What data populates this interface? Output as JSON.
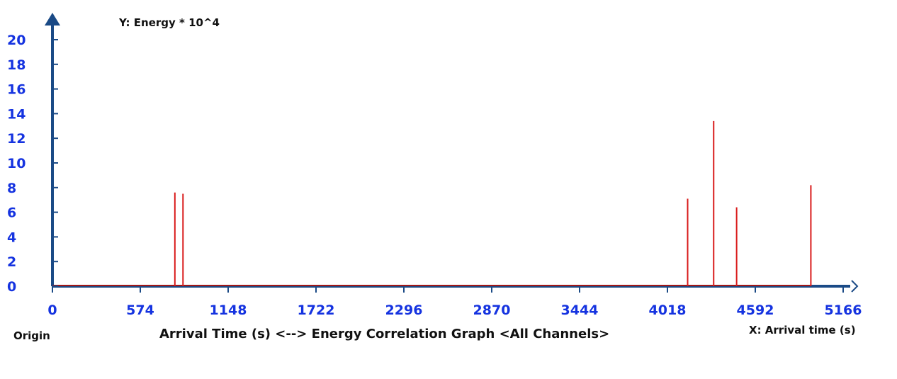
{
  "chart_data": {
    "type": "bar",
    "title": "Arrival Time (s) <--> Energy Correlation Graph <All Channels>",
    "ylabel": "Y: Energy * 10^4",
    "xlabel": "X: Arrival time (s)",
    "origin_label": "Origin",
    "xlim": [
      0,
      5166
    ],
    "ylim": [
      0,
      20
    ],
    "x_ticks": [
      0,
      574,
      1148,
      1722,
      2296,
      2870,
      3444,
      4018,
      4592,
      5166
    ],
    "y_ticks": [
      0,
      2,
      4,
      6,
      8,
      10,
      12,
      14,
      16,
      18,
      20
    ],
    "grid": false,
    "series": [
      {
        "x": [
          800,
          853,
          4150,
          4320,
          4470,
          4955
        ],
        "values": [
          7.6,
          7.5,
          7.1,
          13.4,
          6.4,
          8.2
        ]
      }
    ],
    "colors": {
      "axis": "#1a4a86",
      "tick_label": "#1533e0",
      "series": "#d91c1c",
      "baseline": "#a01818",
      "text": "#111111"
    }
  }
}
